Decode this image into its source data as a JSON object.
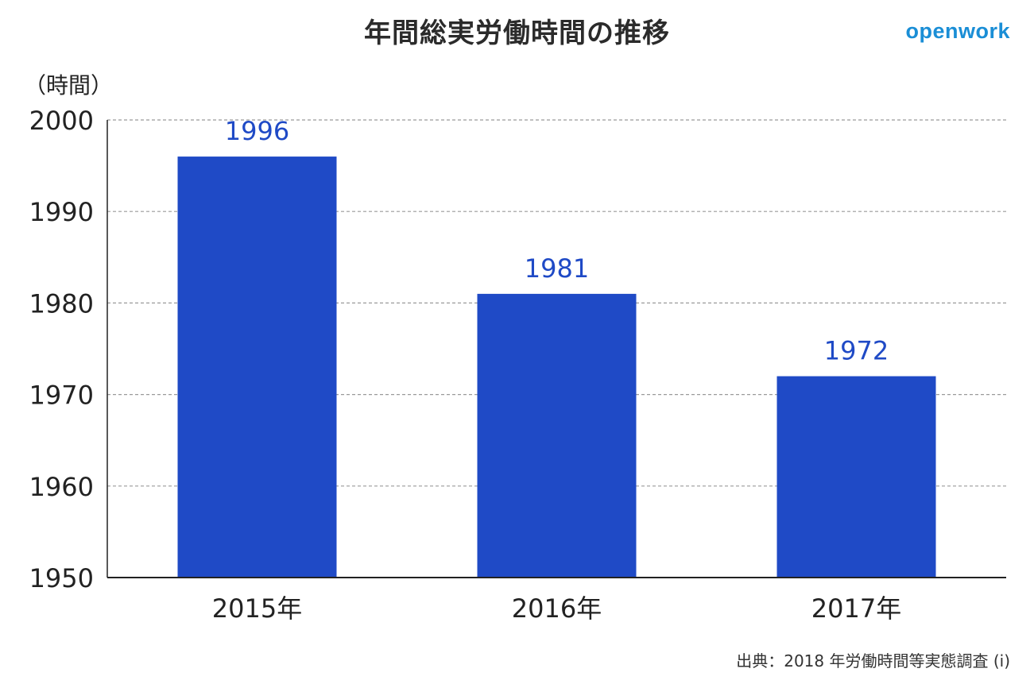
{
  "title": "年間総実労働時間の推移",
  "logo_text": "openwork",
  "unit_label": "（時間）",
  "source": "出典：2018 年労働時間等実態調査 (i)",
  "colors": {
    "bar": "#1f4ac6",
    "value_label": "#1f4ac6",
    "grid": "#9a9a9a",
    "axis": "#222222",
    "logo": "#1a8ed6"
  },
  "chart_data": {
    "type": "bar",
    "categories": [
      "2015年",
      "2016年",
      "2017年"
    ],
    "values": [
      1996,
      1981,
      1972
    ],
    "ylim": [
      1950,
      2000
    ],
    "yticks": [
      1950,
      1960,
      1970,
      1980,
      1990,
      2000
    ],
    "ylabel": "（時間）",
    "xlabel": "",
    "title": "年間総実労働時間の推移",
    "grid": "horizontal dashed",
    "data_labels": true
  }
}
